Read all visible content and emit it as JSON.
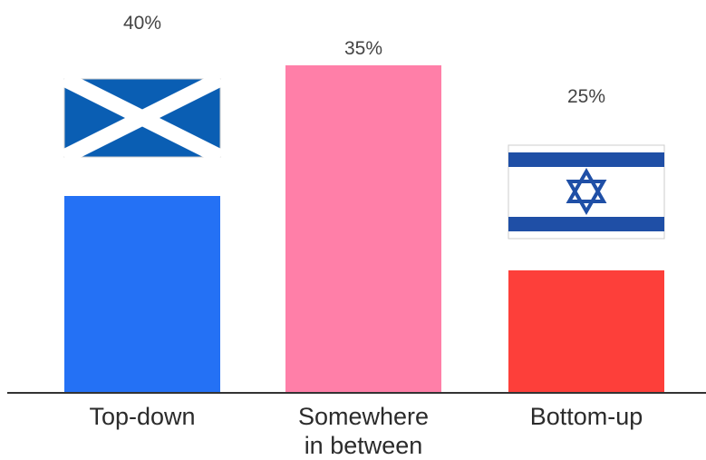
{
  "chart_data": {
    "type": "bar",
    "categories": [
      "Top-down",
      "Somewhere in between",
      "Bottom-up"
    ],
    "category_lines": [
      [
        "Top-down"
      ],
      [
        "Somewhere",
        "in between"
      ],
      [
        "Bottom-up"
      ]
    ],
    "values": [
      40,
      35,
      25
    ],
    "value_labels": [
      "40%",
      "35%",
      "25%"
    ],
    "colors": [
      "#2471f5",
      "#ff7fa8",
      "#fd3f3a"
    ],
    "flags": [
      "scotland-flag-icon",
      null,
      "israel-flag-icon"
    ],
    "title": "",
    "xlabel": "",
    "ylabel": "",
    "ylim": [
      0,
      40
    ],
    "grid": false,
    "legend": "none"
  }
}
